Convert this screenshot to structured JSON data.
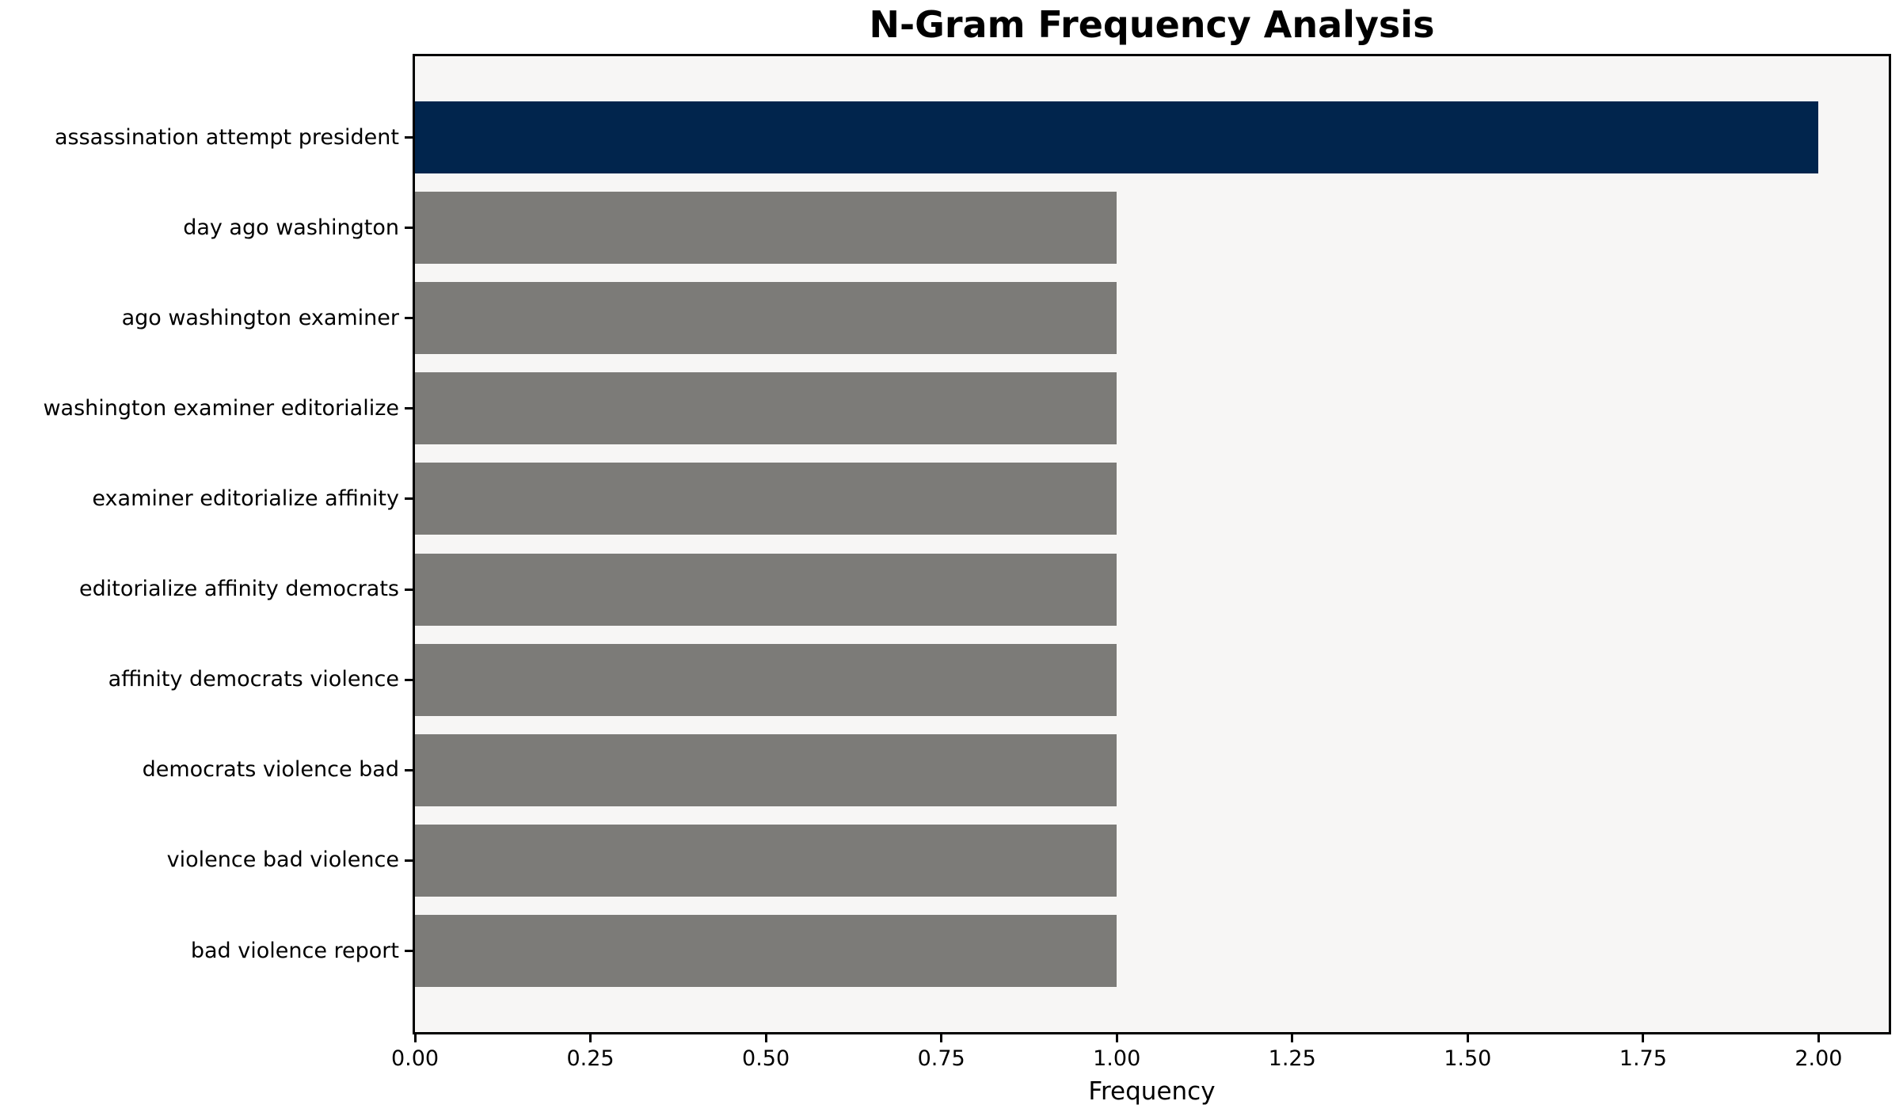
{
  "chart_data": {
    "type": "bar",
    "orientation": "horizontal",
    "title": "N-Gram Frequency Analysis",
    "xlabel": "Frequency",
    "ylabel": "",
    "categories": [
      "assassination attempt president",
      "day ago washington",
      "ago washington examiner",
      "washington examiner editorialize",
      "examiner editorialize affinity",
      "editorialize affinity democrats",
      "affinity democrats violence",
      "democrats violence bad",
      "violence bad violence",
      "bad violence report"
    ],
    "values": [
      2,
      1,
      1,
      1,
      1,
      1,
      1,
      1,
      1,
      1
    ],
    "bar_colors": [
      "#01254d",
      "#7c7b78",
      "#7c7b78",
      "#7c7b78",
      "#7c7b78",
      "#7c7b78",
      "#7c7b78",
      "#7c7b78",
      "#7c7b78",
      "#7c7b78"
    ],
    "highlight_index": 0,
    "xlim": [
      0,
      2.1
    ],
    "xticks": [
      0,
      0.25,
      0.5,
      0.75,
      1,
      1.25,
      1.5,
      1.75,
      2
    ],
    "xtick_labels": [
      "0.00",
      "0.25",
      "0.50",
      "0.75",
      "1.00",
      "1.25",
      "1.50",
      "1.75",
      "2.00"
    ],
    "grid": false,
    "legend_position": "none",
    "colors": {
      "highlight_bar": "#01254d",
      "default_bar": "#7c7b78",
      "plot_background": "#f7f6f5",
      "figure_background": "#ffffff",
      "spine": "#000000",
      "text": "#000000"
    }
  }
}
